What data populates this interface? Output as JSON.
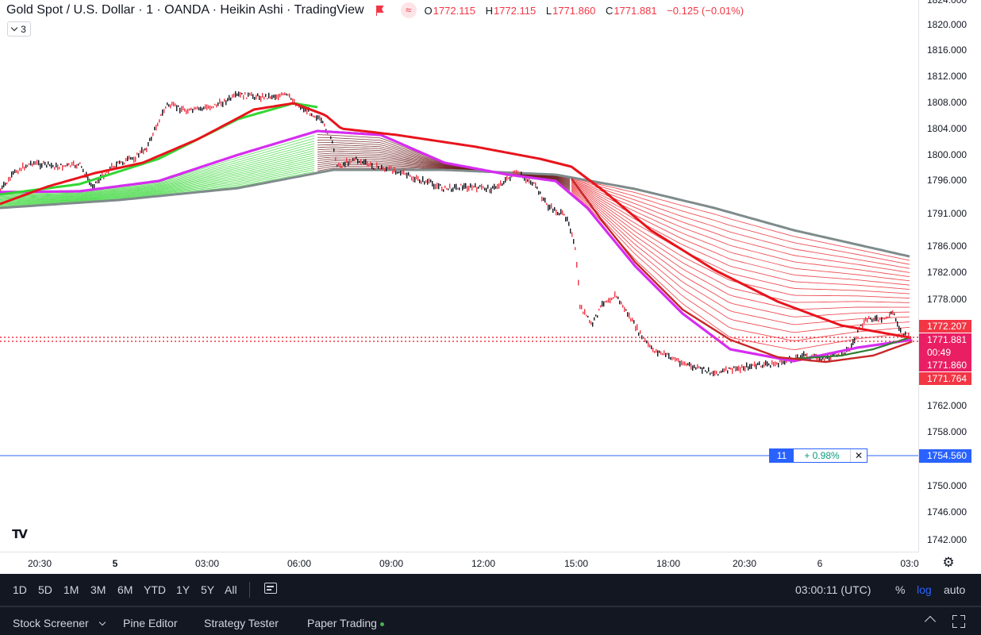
{
  "header": {
    "title": "Gold Spot / U.S. Dollar · 1 · OANDA · Heikin Ashi · TradingView",
    "ohlc": {
      "o_label": "O",
      "o": "1772.115",
      "h_label": "H",
      "h": "1772.115",
      "l_label": "L",
      "l": "1771.860",
      "c_label": "C",
      "c": "1771.881",
      "change": "−0.125 (−0.01%)"
    },
    "indicator_count": "3",
    "flag_icon": "flag-icon",
    "compare_icon": "wave-icon"
  },
  "price_axis": {
    "ticks": [
      "1824.000",
      "1820.000",
      "1816.000",
      "1812.000",
      "1808.000",
      "1804.000",
      "1800.000",
      "1796.000",
      "1791.000",
      "1786.000",
      "1782.000",
      "1778.000",
      "1762.000",
      "1758.000",
      "1750.000",
      "1746.000",
      "1742.000"
    ]
  },
  "price_tags": {
    "high_tag": "1772.207",
    "last_price": "1771.881",
    "countdown": "00:49",
    "low_price": "1771.860",
    "ma_tag": "1771.764",
    "position_price": "1754.560"
  },
  "position": {
    "qty": "11",
    "pnl": "+ 0.98%",
    "close_icon": "close-icon"
  },
  "time_axis": {
    "labels": [
      {
        "text": "20:30",
        "bold": false
      },
      {
        "text": "5",
        "bold": true
      },
      {
        "text": "03:00",
        "bold": false
      },
      {
        "text": "06:00",
        "bold": false
      },
      {
        "text": "09:00",
        "bold": false
      },
      {
        "text": "12:00",
        "bold": false
      },
      {
        "text": "15:00",
        "bold": false
      },
      {
        "text": "18:00",
        "bold": false
      },
      {
        "text": "20:30",
        "bold": false
      },
      {
        "text": "6",
        "bold": false
      },
      {
        "text": "03:0",
        "bold": false
      }
    ],
    "settings_icon": "gear-icon"
  },
  "range_bar": {
    "ranges": [
      "1D",
      "5D",
      "1M",
      "3M",
      "6M",
      "YTD",
      "1Y",
      "5Y",
      "All"
    ],
    "date_range_icon": "calendar-icon",
    "clock": "03:00:11 (UTC)",
    "percent": "%",
    "log": "log",
    "auto": "auto"
  },
  "bottom_tabs": {
    "items": [
      "Stock Screener",
      "Pine Editor",
      "Strategy Tester",
      "Paper Trading"
    ],
    "collapse_icon": "chevron-up-icon",
    "fullscreen_icon": "fullscreen-icon"
  },
  "logo": "TV",
  "colors": {
    "up": "#089981",
    "down": "#f23645",
    "accent": "#2962ff",
    "ma_fast": "#e0c000",
    "ma_purple": "#d62cf0",
    "ribbon_green": "#33d633",
    "ribbon_red": "#e8141c",
    "ribbon_dark": "#6b1a1a",
    "ribbon_gray": "#7f8b8b"
  }
}
